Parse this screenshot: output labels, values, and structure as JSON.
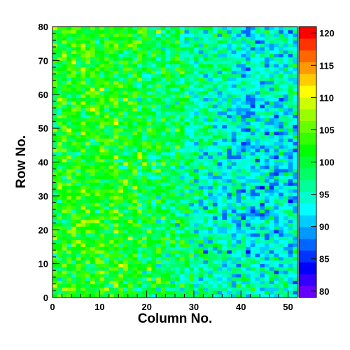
{
  "chart_data": {
    "type": "heatmap",
    "xlabel": "Column No.",
    "ylabel": "Row No.",
    "xlim": [
      0,
      52
    ],
    "ylim": [
      0,
      80
    ],
    "x_bins": 52,
    "y_bins": 80,
    "z_range": [
      79,
      121
    ],
    "x_ticks": [
      0,
      10,
      20,
      30,
      40,
      50
    ],
    "y_ticks": [
      0,
      10,
      20,
      30,
      40,
      50,
      60,
      70,
      80
    ],
    "z_ticks": [
      80,
      85,
      90,
      95,
      100,
      105,
      110,
      115,
      120
    ],
    "colorbar_position": "right",
    "grid": false,
    "palette": [
      "#6600ff",
      "#3300ff",
      "#0000ff",
      "#0033ff",
      "#0066ff",
      "#0099ff",
      "#00ccff",
      "#00ffff",
      "#00ffcc",
      "#00ff99",
      "#00ff66",
      "#00ff33",
      "#00ff00",
      "#33ff00",
      "#66ff00",
      "#99ff00",
      "#ccff00",
      "#ffff00",
      "#ffcc00",
      "#ff9900",
      "#ff6600",
      "#ff3300",
      "#ff0000"
    ],
    "cell_value_model": {
      "description_of_trend": "left columns near 102, right columns near 94, noise +/-6",
      "left_mean": 102,
      "right_mean": 94,
      "noise_amplitude": 6
    }
  }
}
